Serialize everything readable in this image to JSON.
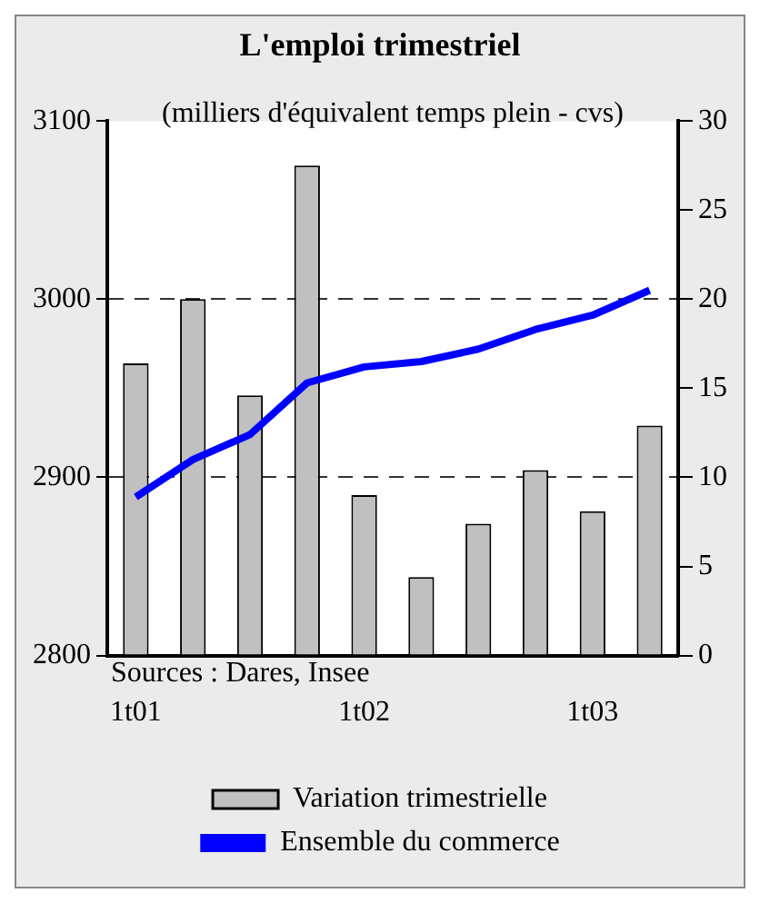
{
  "chart_data": {
    "type": "bar",
    "title": "L'emploi trimestriel",
    "subtitle": "(milliers d'équivalent temps plein - cvs)",
    "annotations": [
      "Sources : Dares, Insee"
    ],
    "categories": [
      "1t01",
      null,
      null,
      null,
      "1t02",
      null,
      null,
      null,
      "1t03",
      null
    ],
    "series": [
      {
        "name": "Variation trimestrielle",
        "type": "bar",
        "axis": "y2",
        "color": "#c0c0c0",
        "values": [
          16.4,
          20.0,
          14.6,
          27.5,
          9.0,
          4.4,
          7.4,
          10.4,
          8.1,
          12.9
        ]
      },
      {
        "name": "Ensemble du commerce",
        "type": "line",
        "axis": "y",
        "color": "#0000ff",
        "values": [
          2889,
          2910,
          2924,
          2953,
          2962,
          2965,
          2972,
          2983,
          2991,
          3005
        ]
      }
    ],
    "ylim": [
      2800,
      3100
    ],
    "yticks": [
      2800,
      2900,
      3000,
      3100
    ],
    "y2lim": [
      0,
      30
    ],
    "y2ticks": [
      0,
      5,
      10,
      15,
      20,
      25,
      30
    ],
    "grid": "y",
    "legend": "bottom",
    "marker": "none"
  }
}
